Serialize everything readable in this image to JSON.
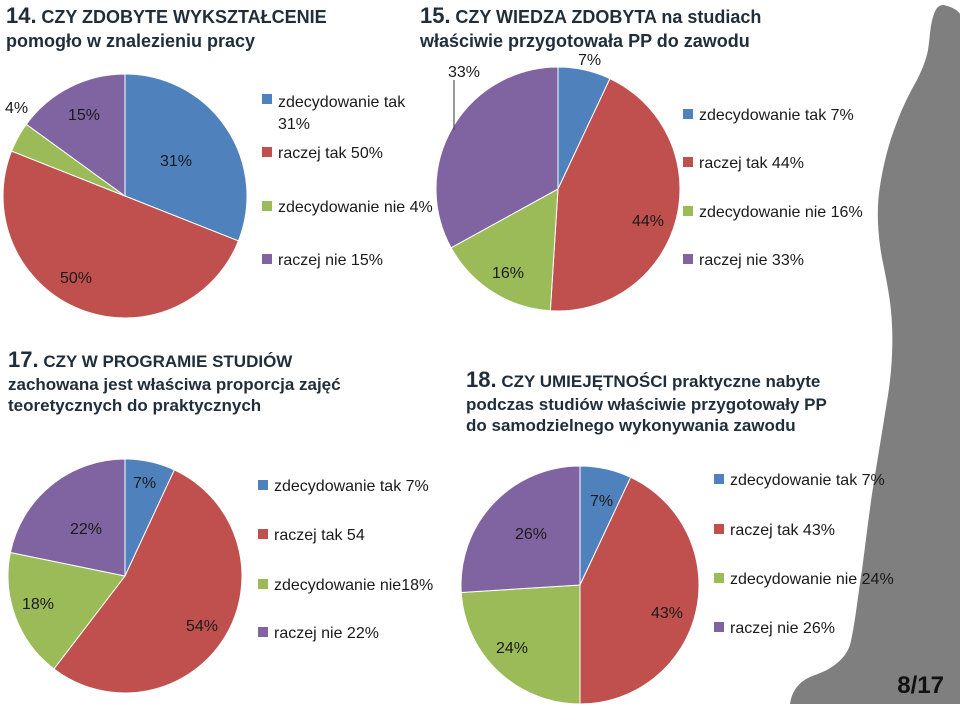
{
  "colors": {
    "zt": "#4f81bd",
    "rt": "#c0504d",
    "zn": "#9bbb59",
    "rn": "#8064a2"
  },
  "chart_data": [
    {
      "type": "pie",
      "number": "14.",
      "title_line1": "CZY ZDOBYTE WYKSZTAŁCENIE",
      "title_line2": "pomogło w znalezieniu pracy",
      "slices": [
        {
          "label": "zdecydowanie tak 31%",
          "value": 31,
          "color": "#4f81bd",
          "data_label": "31%"
        },
        {
          "label": "raczej tak 50%",
          "value": 50,
          "color": "#c0504d",
          "data_label": "50%"
        },
        {
          "label": "zdecydowanie nie 4%",
          "value": 4,
          "color": "#9bbb59",
          "data_label": "4%"
        },
        {
          "label": "raczej nie 15%",
          "value": 15,
          "color": "#8064a2",
          "data_label": "15%"
        }
      ],
      "legend_position": "right"
    },
    {
      "type": "pie",
      "number": "15.",
      "title_line1": "CZY WIEDZA ZDOBYTA na studiach",
      "title_line2": "właściwie przygotowała PP do  zawodu",
      "slices": [
        {
          "label": "zdecydowanie tak 7%",
          "value": 7,
          "color": "#4f81bd",
          "data_label": "7%"
        },
        {
          "label": "raczej tak 44%",
          "value": 44,
          "color": "#c0504d",
          "data_label": "44%"
        },
        {
          "label": "zdecydowanie nie 16%",
          "value": 16,
          "color": "#9bbb59",
          "data_label": "16%"
        },
        {
          "label": "raczej nie 33%",
          "value": 33,
          "color": "#8064a2",
          "data_label": "33%"
        }
      ],
      "legend_position": "right"
    },
    {
      "type": "pie",
      "number": "17.",
      "title_line1": "CZY W PROGRAMIE STUDIÓW",
      "title_line2": "zachowana jest właściwa proporcja zajęć",
      "title_line3": "teoretycznych do praktycznych",
      "slices": [
        {
          "label": "zdecydowanie tak 7%",
          "value": 7,
          "color": "#4f81bd",
          "data_label": "7%"
        },
        {
          "label": "raczej tak 54",
          "value": 54,
          "color": "#c0504d",
          "data_label": "54%"
        },
        {
          "label": "zdecydowanie nie18%",
          "value": 18,
          "color": "#9bbb59",
          "data_label": "18%"
        },
        {
          "label": "raczej nie 22%",
          "value": 22,
          "color": "#8064a2",
          "data_label": "22%"
        }
      ],
      "legend_position": "right"
    },
    {
      "type": "pie",
      "number": "18.",
      "title_line1": "CZY UMIEJĘTNOŚCI praktyczne nabyte",
      "title_line2": "podczas studiów właściwie przygotowały PP",
      "title_line3": "do samodzielnego wykonywania zawodu",
      "slices": [
        {
          "label": "zdecydowanie tak 7%",
          "value": 7,
          "color": "#4f81bd",
          "data_label": "7%"
        },
        {
          "label": "raczej tak 43%",
          "value": 43,
          "color": "#c0504d",
          "data_label": "43%"
        },
        {
          "label": "zdecydowanie nie 24%",
          "value": 24,
          "color": "#9bbb59",
          "data_label": "24%"
        },
        {
          "label": "raczej nie 26%",
          "value": 26,
          "color": "#8064a2",
          "data_label": "26%"
        }
      ],
      "legend_position": "right"
    }
  ],
  "page_number": "8/17"
}
